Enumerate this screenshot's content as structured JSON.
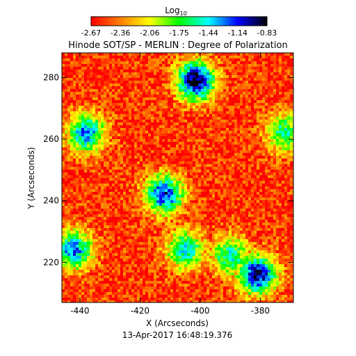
{
  "chart_data": {
    "type": "heatmap",
    "title": "Hinode SOT/SP - MERLIN : Degree of Polarization",
    "colorbar": {
      "label": "Log",
      "label_subscript": "10",
      "ticks": [
        "-2.67",
        "-2.36",
        "-2.06",
        "-1.75",
        "-1.44",
        "-1.14",
        "-0.83"
      ],
      "range": [
        -2.67,
        -0.83
      ],
      "colors": [
        "#ff0000",
        "#ff8000",
        "#ffff00",
        "#00ff00",
        "#00ffff",
        "#0000ff",
        "#000000"
      ]
    },
    "xlabel": "X (Arcseconds)",
    "ylabel": "Y (Arcseconds)",
    "xlim": [
      -446,
      -369
    ],
    "ylim": [
      207,
      288
    ],
    "xticks": [
      "-440",
      "-420",
      "-400",
      "-380"
    ],
    "xtick_values": [
      -440,
      -420,
      -400,
      -380
    ],
    "yticks": [
      "220",
      "240",
      "260",
      "280"
    ],
    "ytick_values": [
      220,
      240,
      260,
      280
    ],
    "timestamp": "13-Apr-2017 16:48:19.376",
    "features": [
      {
        "x": -401.5,
        "y": 279,
        "v": -0.83
      },
      {
        "x": -381,
        "y": 216,
        "v": -0.95
      },
      {
        "x": -412,
        "y": 242,
        "v": -1.1
      },
      {
        "x": -442,
        "y": 224,
        "v": -1.25
      },
      {
        "x": -438,
        "y": 262,
        "v": -1.3
      },
      {
        "x": -405,
        "y": 224,
        "v": -1.45
      },
      {
        "x": -390,
        "y": 222,
        "v": -1.5
      },
      {
        "x": -372,
        "y": 262,
        "v": -1.6
      }
    ],
    "background_value": -2.55,
    "grid": false
  }
}
